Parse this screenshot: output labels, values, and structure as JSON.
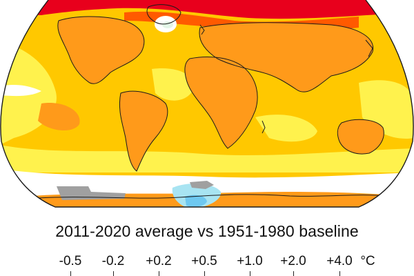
{
  "caption": "2011-2020 average vs 1951-1980 baseline",
  "legend": {
    "unit": "°C",
    "ticks": [
      {
        "label": "-0.5"
      },
      {
        "label": "-0.2"
      },
      {
        "label": "+0.2"
      },
      {
        "label": "+0.5"
      },
      {
        "label": "+1.0"
      },
      {
        "label": "+2.0"
      },
      {
        "label": "+4.0"
      }
    ]
  },
  "palette": {
    "cool_strong": "#6ec8f0",
    "cool_light": "#a8e4f2",
    "neutral": "#ffffff",
    "near_zero": "#e3f5e7",
    "warm_1": "#fff24d",
    "warm_2": "#ffc800",
    "warm_3": "#ff9a1a",
    "warm_4": "#ff5a00",
    "warm_5": "#e8001c",
    "no_data": "#a0a0a0",
    "coastline": "#1a1a1a"
  },
  "regions": [
    {
      "name": "ocean-warm-background",
      "tier": "warm_2"
    },
    {
      "name": "arctic-hot-band",
      "tier": "warm_5"
    },
    {
      "name": "north-america-warming",
      "tier": "warm_3"
    },
    {
      "name": "eurasia-warming",
      "tier": "warm_3"
    },
    {
      "name": "africa-warming",
      "tier": "warm_3"
    },
    {
      "name": "south-america-warming",
      "tier": "warm_3"
    },
    {
      "name": "australia-warming",
      "tier": "warm_3"
    },
    {
      "name": "pacific-light-warming",
      "tier": "warm_1"
    },
    {
      "name": "southern-ocean-band",
      "tier": "warm_1"
    },
    {
      "name": "antarctic-coast-neutral",
      "tier": "neutral"
    },
    {
      "name": "antarctic-cool-patch",
      "tier": "cool_light"
    },
    {
      "name": "antarctic-missing-data",
      "tier": "no_data"
    }
  ]
}
